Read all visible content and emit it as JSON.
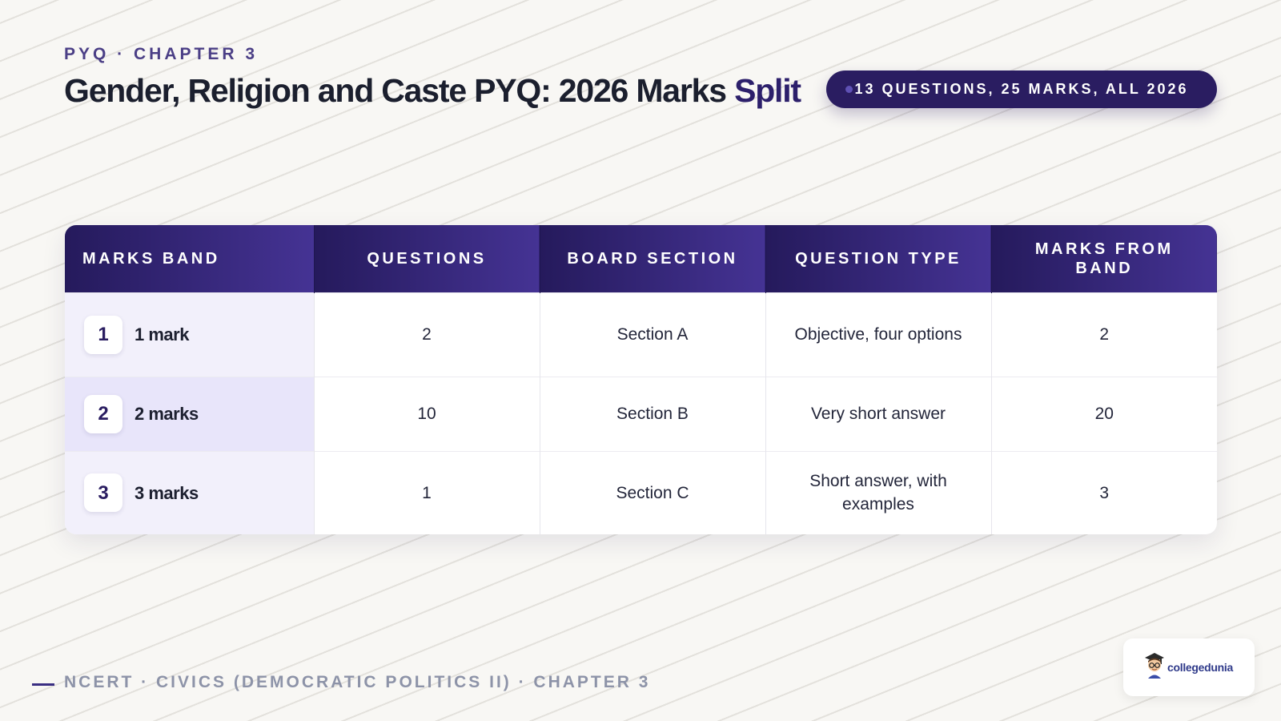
{
  "header": {
    "kicker": "PYQ · CHAPTER 3",
    "title_main": "Gender, Religion and Caste PYQ: 2026 Marks ",
    "title_accent": "Split",
    "pill_text": "13 QUESTIONS, 25 MARKS, ALL 2026"
  },
  "table": {
    "columns": [
      "MARKS BAND",
      "QUESTIONS",
      "BOARD SECTION",
      "QUESTION TYPE",
      "MARKS FROM BAND"
    ],
    "rows": [
      {
        "index": "1",
        "band": "1 mark",
        "questions": "2",
        "section": "Section A",
        "type": "Objective, four options",
        "marks": "2"
      },
      {
        "index": "2",
        "band": "2 marks",
        "questions": "10",
        "section": "Section B",
        "type": "Very short answer",
        "marks": "20"
      },
      {
        "index": "3",
        "band": "3 marks",
        "questions": "1",
        "section": "Section C",
        "type": "Short answer, with examples",
        "marks": "3"
      }
    ]
  },
  "footer": {
    "text": "NCERT · CIVICS (DEMOCRATIC POLITICS II) · CHAPTER 3"
  },
  "logo": {
    "text": "collegedunia",
    "icon": "student-mascot-icon"
  },
  "colors": {
    "accent": "#2a1d61",
    "header_gradient_start": "#251a5c",
    "header_gradient_end": "#453394",
    "band_bg": "#f2f0fb",
    "band_bg_highlight": "#e8e5fa"
  }
}
